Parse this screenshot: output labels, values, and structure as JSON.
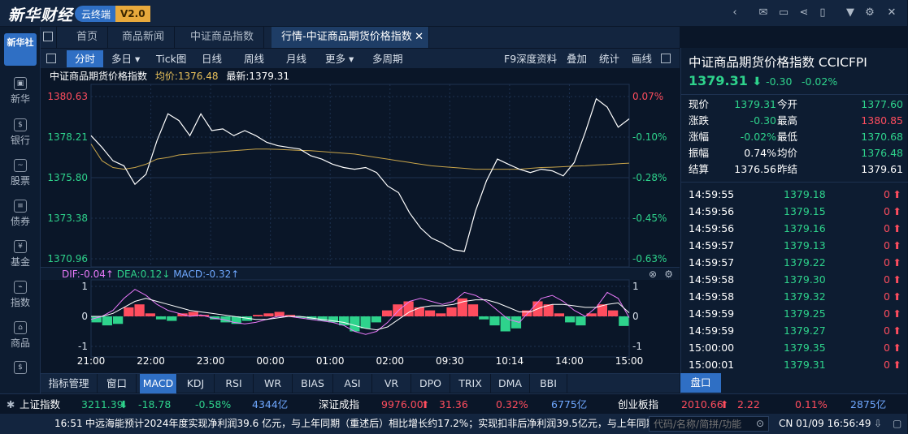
{
  "app": {
    "logo": "新华财经",
    "cloud_label": "云终端",
    "version": "V2.0"
  },
  "sidebar": {
    "logo": "新华社",
    "items": [
      {
        "label": "新华",
        "icon": "news-icon"
      },
      {
        "label": "银行",
        "icon": "bank-icon"
      },
      {
        "label": "股票",
        "icon": "stock-icon"
      },
      {
        "label": "债券",
        "icon": "bond-icon"
      },
      {
        "label": "基金",
        "icon": "fund-icon"
      },
      {
        "label": "指数",
        "icon": "index-icon"
      },
      {
        "label": "商品",
        "icon": "commodity-icon"
      }
    ]
  },
  "tabs": [
    {
      "label": "首页"
    },
    {
      "label": "商品新闻"
    },
    {
      "label": "中证商品指数"
    },
    {
      "label": "行情-中证商品期货价格指数"
    }
  ],
  "toolbar": {
    "left": [
      {
        "label": "分时"
      },
      {
        "label": "多日 ▾"
      },
      {
        "label": "Tick图"
      },
      {
        "label": "日线"
      },
      {
        "label": "周线"
      },
      {
        "label": "月线"
      },
      {
        "label": "更多 ▾"
      },
      {
        "label": "多周期"
      }
    ],
    "right": [
      {
        "label": "F9深度资料"
      },
      {
        "label": "叠加"
      },
      {
        "label": "统计"
      },
      {
        "label": "画线"
      }
    ]
  },
  "chart_info": {
    "name": "中证商品期货价格指数",
    "avg_label": "均价:",
    "avg_value": "1376.48",
    "last_label": "最新:",
    "last_value": "1379.31"
  },
  "macd_info": {
    "dif": "DIF:-0.04↑",
    "dea": "DEA:0.12↓",
    "macd": "MACD:-0.32↑"
  },
  "indicators": [
    {
      "label": "指标管理"
    },
    {
      "label": "窗口"
    },
    {
      "label": "MACD"
    },
    {
      "label": "KDJ"
    },
    {
      "label": "RSI"
    },
    {
      "label": "WR"
    },
    {
      "label": "BIAS"
    },
    {
      "label": "ASI"
    },
    {
      "label": "VR"
    },
    {
      "label": "DPO"
    },
    {
      "label": "TRIX"
    },
    {
      "label": "DMA"
    },
    {
      "label": "BBI"
    }
  ],
  "chart_data": [
    {
      "type": "line",
      "yticks": [
        "1380.63",
        "1378.21",
        "1375.80",
        "1373.38",
        "1370.96"
      ],
      "pct_ticks": [
        "0.07%",
        "-0.10%",
        "-0.28%",
        "-0.45%",
        "-0.63%"
      ],
      "xticks": [
        "21:00",
        "22:00",
        "23:00",
        "00:00",
        "01:00",
        "02:00",
        "09:30",
        "10:14",
        "14:00",
        "15:00"
      ],
      "ylim": [
        1370.96,
        1380.63
      ],
      "series": [
        {
          "values": [
            1378.3,
            1377.6,
            1376.8,
            1376.5,
            1375.4,
            1376.0,
            1378.0,
            1379.6,
            1379.2,
            1378.3,
            1379.6,
            1378.6,
            1378.7,
            1378.3,
            1378.6,
            1378.3,
            1377.9,
            1377.7,
            1377.6,
            1377.5,
            1377.1,
            1376.9,
            1376.6,
            1376.4,
            1376.3,
            1376.4,
            1376.1,
            1375.3,
            1374.9,
            1373.7,
            1372.8,
            1372.2,
            1371.9,
            1371.5,
            1371.4,
            1373.8,
            1375.6,
            1376.9,
            1376.6,
            1376.3,
            1376.1,
            1376.3,
            1376.2,
            1375.9,
            1376.7,
            1378.5,
            1380.5,
            1380.0,
            1378.8,
            1379.3
          ]
        },
        {
          "values": [
            1377.8,
            1376.8,
            1376.4,
            1376.3,
            1376.4,
            1376.6,
            1376.9,
            1377.0,
            1377.15,
            1377.2,
            1377.25,
            1377.3,
            1377.35,
            1377.4,
            1377.45,
            1377.5,
            1377.5,
            1377.48,
            1377.45,
            1377.42,
            1377.4,
            1377.35,
            1377.3,
            1377.25,
            1377.2,
            1377.1,
            1377.0,
            1376.9,
            1376.8,
            1376.7,
            1376.6,
            1376.5,
            1376.45,
            1376.4,
            1376.35,
            1376.3,
            1376.3,
            1376.3,
            1376.3,
            1376.3,
            1376.35,
            1376.4,
            1376.42,
            1376.45,
            1376.48,
            1376.5,
            1376.55,
            1376.58,
            1376.62,
            1376.66
          ]
        }
      ]
    },
    {
      "type": "bar",
      "yticks": [
        "1",
        "0",
        "-1"
      ],
      "ylim": [
        -1,
        1
      ],
      "series": [
        {
          "values": [
            -0.2,
            -0.3,
            -0.25,
            0.3,
            0.4,
            0.1,
            -0.1,
            -0.15,
            0.1,
            0.15,
            0.05,
            -0.1,
            -0.2,
            -0.25,
            -0.15,
            0.05,
            0.1,
            0.15,
            0.05,
            -0.05,
            -0.1,
            -0.15,
            -0.2,
            -0.3,
            -0.5,
            -0.4,
            -0.2,
            0.2,
            0.4,
            0.5,
            0.3,
            0.2,
            0.1,
            0.3,
            0.6,
            0.4,
            -0.1,
            -0.3,
            -0.5,
            -0.4,
            0.2,
            0.5,
            0.4,
            0.1,
            -0.2,
            -0.3,
            0.1,
            0.4,
            0.2,
            -0.32
          ]
        },
        {
          "values": [
            -0.1,
            0.0,
            0.2,
            0.6,
            0.9,
            0.7,
            0.4,
            0.2,
            0.1,
            0.0,
            0.05,
            -0.05,
            -0.1,
            -0.2,
            -0.25,
            -0.2,
            -0.1,
            0.0,
            0.0,
            -0.05,
            -0.1,
            -0.15,
            -0.2,
            -0.3,
            -0.5,
            -0.6,
            -0.5,
            -0.2,
            0.2,
            0.5,
            0.6,
            0.5,
            0.4,
            0.5,
            0.8,
            0.7,
            0.5,
            0.2,
            -0.1,
            -0.2,
            0.2,
            0.6,
            0.7,
            0.5,
            0.2,
            0.0,
            0.3,
            0.8,
            0.6,
            -0.04
          ]
        },
        {
          "values": [
            0.0,
            0.0,
            0.1,
            0.3,
            0.5,
            0.6,
            0.5,
            0.4,
            0.3,
            0.2,
            0.15,
            0.1,
            0.05,
            0.0,
            -0.05,
            -0.1,
            -0.1,
            -0.05,
            0.0,
            0.0,
            -0.05,
            -0.1,
            -0.15,
            -0.2,
            -0.3,
            -0.4,
            -0.45,
            -0.35,
            -0.1,
            0.15,
            0.3,
            0.35,
            0.35,
            0.4,
            0.5,
            0.55,
            0.55,
            0.45,
            0.3,
            0.15,
            0.15,
            0.3,
            0.4,
            0.4,
            0.35,
            0.3,
            0.3,
            0.4,
            0.45,
            0.12
          ]
        }
      ]
    }
  ],
  "right_panel": {
    "title": "中证商品期货价格指数  CCICFPI",
    "price": "1379.31",
    "change": "-0.30",
    "pct": "-0.02%",
    "quotes": [
      {
        "l1": "现价",
        "v1": "1379.31",
        "l2": "今开",
        "v2": "1377.60"
      },
      {
        "l1": "涨跌",
        "v1": "-0.30",
        "l2": "最高",
        "v2": "1380.85"
      },
      {
        "l1": "涨幅",
        "v1": "-0.02%",
        "l2": "最低",
        "v2": "1370.68"
      },
      {
        "l1": "振幅",
        "v1": "0.74%",
        "l2": "均价",
        "v2": "1376.48"
      },
      {
        "l1": "结算",
        "v1": "1376.56",
        "l2": "昨结",
        "v2": "1379.61"
      }
    ],
    "ticks": [
      {
        "time": "14:59:55",
        "price": "1379.18",
        "vol": "0"
      },
      {
        "time": "14:59:56",
        "price": "1379.15",
        "vol": "0"
      },
      {
        "time": "14:59:56",
        "price": "1379.16",
        "vol": "0"
      },
      {
        "time": "14:59:57",
        "price": "1379.13",
        "vol": "0"
      },
      {
        "time": "14:59:57",
        "price": "1379.22",
        "vol": "0"
      },
      {
        "time": "14:59:58",
        "price": "1379.30",
        "vol": "0"
      },
      {
        "time": "14:59:58",
        "price": "1379.32",
        "vol": "0"
      },
      {
        "time": "14:59:59",
        "price": "1379.25",
        "vol": "0"
      },
      {
        "time": "14:59:59",
        "price": "1379.27",
        "vol": "0"
      },
      {
        "time": "15:00:00",
        "price": "1379.35",
        "vol": "0"
      },
      {
        "time": "15:00:01",
        "price": "1379.31",
        "vol": "0"
      }
    ],
    "tab_label": "盘口"
  },
  "index_bar": [
    {
      "name": "上证指数",
      "value": "3211.39",
      "change": "-18.78",
      "pct": "-0.58%",
      "amount": "4344亿"
    },
    {
      "name": "深证成指",
      "value": "9976.00",
      "change": "31.36",
      "pct": "0.32%",
      "amount": "6775亿"
    },
    {
      "name": "创业板指",
      "value": "2010.66",
      "change": "2.22",
      "pct": "0.11%",
      "amount": "2875亿"
    }
  ],
  "status": {
    "time": "16:51",
    "news": "中远海能预计2024年度实现净利润39.6 亿元，与上年同期（重述后）相比增长约17.2%；实现扣非后净利润39.5亿元，与上年同期",
    "search_placeholder": "代码/名称/简拼/功能",
    "clock": "CN 01/09 16:56:49"
  }
}
